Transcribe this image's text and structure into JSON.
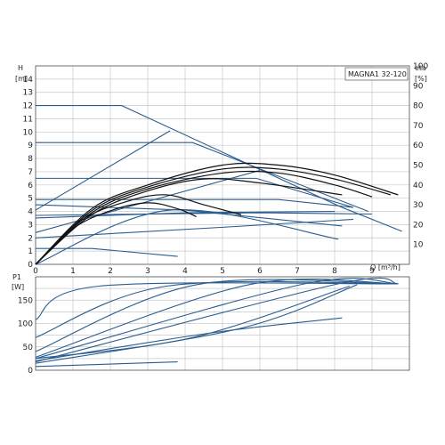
{
  "chart_data": [
    {
      "type": "line",
      "title": "MAGNA1 32-120",
      "x_label": "Q [m³/h]",
      "y_label_top": "H",
      "y_label_unit": "[m]",
      "y2_label_top": "eta",
      "y2_label_unit": "[%]",
      "xlim": [
        0,
        10
      ],
      "ylim": [
        0,
        15
      ],
      "y2lim": [
        0,
        100
      ],
      "grid": true,
      "x_ticks": [
        "0",
        "1",
        "2",
        "3",
        "4",
        "5",
        "6",
        "7",
        "8",
        "9"
      ],
      "y_ticks": [
        "0",
        "1",
        "2",
        "3",
        "4",
        "5",
        "6",
        "7",
        "8",
        "9",
        "10",
        "11",
        "12",
        "13",
        "14"
      ],
      "y2_ticks": [
        "10",
        "20",
        "30",
        "40",
        "50",
        "60",
        "70",
        "80",
        "90",
        "100"
      ],
      "series": [
        {
          "role": "pump curve",
          "points": [
            [
              0,
              12
            ],
            [
              2.3,
              12
            ],
            [
              8.2,
              4.3
            ],
            [
              9.8,
              2.5
            ]
          ]
        },
        {
          "role": "pump curve",
          "points": [
            [
              0,
              9.2
            ],
            [
              4.2,
              9.2
            ],
            [
              8.9,
              4.0
            ]
          ]
        },
        {
          "role": "pump curve",
          "points": [
            [
              0,
              6.5
            ],
            [
              5.9,
              6.5
            ],
            [
              8.5,
              4.3
            ]
          ]
        },
        {
          "role": "pump curve",
          "points": [
            [
              0,
              4.9
            ],
            [
              6.5,
              4.9
            ],
            [
              8.5,
              4.3
            ]
          ]
        },
        {
          "role": "pump curve",
          "points": [
            [
              0,
              4.5
            ],
            [
              4.0,
              4.1
            ],
            [
              8.2,
              2.9
            ]
          ]
        },
        {
          "role": "pump curve",
          "points": [
            [
              0,
              3.7
            ],
            [
              6.0,
              3.9
            ],
            [
              9.0,
              3.8
            ]
          ]
        },
        {
          "role": "pump curve",
          "points": [
            [
              0,
              3.5
            ],
            [
              4.0,
              3.9
            ],
            [
              8.0,
              4.0
            ]
          ]
        },
        {
          "role": "pump curve",
          "points": [
            [
              0,
              2.0
            ],
            [
              5.0,
              2.8
            ],
            [
              8.5,
              3.4
            ]
          ]
        },
        {
          "role": "pump curve",
          "points": [
            [
              0,
              1.2
            ],
            [
              1.5,
              1.2
            ],
            [
              3.8,
              0.6
            ]
          ]
        },
        {
          "role": "system curve",
          "points": [
            [
              0,
              4.1
            ],
            [
              3.6,
              10.1
            ]
          ]
        },
        {
          "role": "system curve",
          "points": [
            [
              0,
              2.4
            ],
            [
              6.0,
              7.1
            ]
          ]
        },
        {
          "role": "system curve",
          "points": [
            [
              0,
              0
            ],
            [
              3.6,
              4.1
            ],
            [
              8.1,
              1.9
            ]
          ]
        },
        {
          "role": "efficiency",
          "points": [
            [
              0,
              0
            ],
            [
              1.5,
              28
            ],
            [
              3,
              40
            ],
            [
              5,
              50
            ],
            [
              6.5,
              50
            ],
            [
              8,
              45
            ],
            [
              9.7,
              35
            ]
          ]
        },
        {
          "role": "efficiency",
          "points": [
            [
              0,
              0
            ],
            [
              1.5,
              27
            ],
            [
              3,
              39
            ],
            [
              5,
              48
            ],
            [
              6.5,
              48
            ],
            [
              8,
              43
            ],
            [
              9.5,
              35
            ]
          ]
        },
        {
          "role": "efficiency",
          "points": [
            [
              0,
              0
            ],
            [
              1.5,
              26
            ],
            [
              3,
              38
            ],
            [
              5,
              46
            ],
            [
              6.5,
              46
            ],
            [
              8,
              40
            ],
            [
              9,
              34
            ]
          ]
        },
        {
          "role": "efficiency",
          "points": [
            [
              0,
              0
            ],
            [
              1.5,
              25
            ],
            [
              3,
              37
            ],
            [
              4.5,
              43
            ],
            [
              6,
              41
            ],
            [
              8.2,
              35
            ]
          ]
        },
        {
          "role": "efficiency",
          "points": [
            [
              0,
              0
            ],
            [
              1.2,
              22
            ],
            [
              2.5,
              32
            ],
            [
              3.5,
              35
            ],
            [
              4.5,
              30
            ],
            [
              5.5,
              25
            ]
          ]
        },
        {
          "role": "efficiency",
          "points": [
            [
              0,
              0
            ],
            [
              1,
              18
            ],
            [
              2,
              27
            ],
            [
              3,
              31
            ],
            [
              3.8,
              28
            ],
            [
              4.3,
              24
            ]
          ]
        }
      ]
    },
    {
      "type": "line",
      "y_label_top": "P1",
      "y_label_unit": "[W]",
      "xlim": [
        0,
        10
      ],
      "ylim": [
        0,
        200
      ],
      "grid": true,
      "y_ticks": [
        "0",
        "50",
        "100",
        "150"
      ],
      "series": [
        {
          "points": [
            [
              0,
              108
            ],
            [
              1.7,
              180
            ],
            [
              9.7,
              185
            ]
          ]
        },
        {
          "points": [
            [
              0,
              70
            ],
            [
              3.5,
              180
            ],
            [
              9.7,
              185
            ]
          ]
        },
        {
          "points": [
            [
              0,
              40
            ],
            [
              4.3,
              183
            ],
            [
              9.7,
              185
            ]
          ]
        },
        {
          "points": [
            [
              0,
              28
            ],
            [
              5.7,
              183
            ],
            [
              9.7,
              185
            ]
          ]
        },
        {
          "points": [
            [
              0,
              25
            ],
            [
              7.2,
              185
            ],
            [
              9.7,
              185
            ]
          ]
        },
        {
          "points": [
            [
              0,
              18
            ],
            [
              8.1,
              185
            ],
            [
              9.7,
              185
            ]
          ]
        },
        {
          "points": [
            [
              0,
              20
            ],
            [
              4.7,
              80
            ],
            [
              8.2,
              112
            ]
          ]
        },
        {
          "points": [
            [
              0,
              25
            ],
            [
              4.2,
              70
            ],
            [
              8.4,
              180
            ]
          ]
        },
        {
          "points": [
            [
              0,
              8
            ],
            [
              3.8,
              18
            ]
          ]
        },
        {
          "points": [
            [
              0,
              15
            ],
            [
              5.5,
              90
            ],
            [
              8.6,
              183
            ]
          ]
        }
      ]
    }
  ]
}
